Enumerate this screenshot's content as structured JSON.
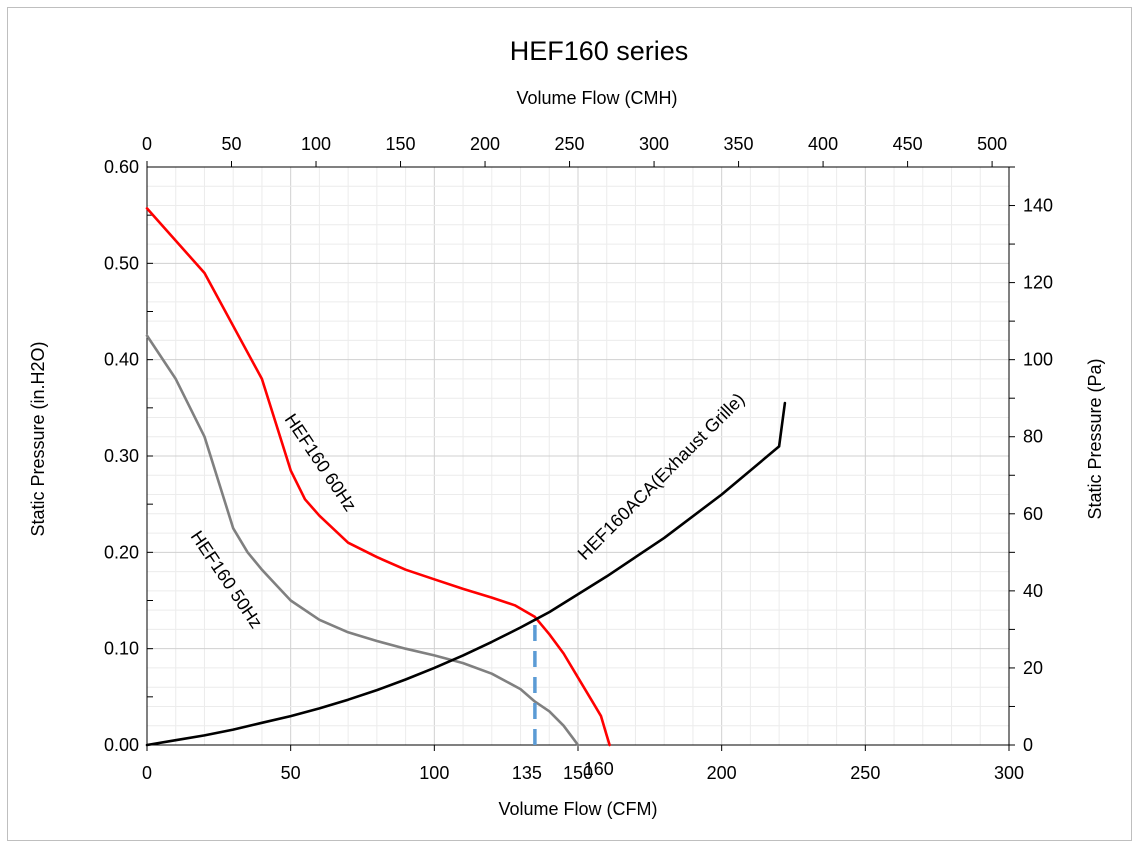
{
  "chart_data": {
    "type": "line",
    "title": "HEF160 series",
    "xlabel": "Volume Flow (CFM)",
    "x2label": "Volume Flow (CMH)",
    "ylabel": "Static Pressure (in.H2O)",
    "y2label": "Static Pressure (Pa)",
    "xlim": [
      0,
      300
    ],
    "x2lim": [
      0,
      510
    ],
    "ylim": [
      0,
      0.6
    ],
    "y2lim": [
      0,
      150
    ],
    "grid": true,
    "x_ticks": [
      "0",
      "50",
      "100",
      "135",
      "150",
      "160",
      "200",
      "250",
      "300"
    ],
    "x_tick_values": [
      0,
      50,
      100,
      135,
      150,
      160,
      200,
      250,
      300
    ],
    "x2_ticks": [
      "0",
      "50",
      "100",
      "150",
      "200",
      "250",
      "300",
      "350",
      "400",
      "450",
      "500"
    ],
    "y_ticks": [
      "0.00",
      "0.10",
      "0.20",
      "0.30",
      "0.40",
      "0.50",
      "0.60"
    ],
    "y2_ticks": [
      "0",
      "20",
      "40",
      "60",
      "80",
      "100",
      "120",
      "140"
    ],
    "series": [
      {
        "name": "HEF160 60Hz",
        "color": "#ff0000",
        "points": [
          [
            0,
            0.557
          ],
          [
            20,
            0.49
          ],
          [
            40,
            0.38
          ],
          [
            50,
            0.285
          ],
          [
            55,
            0.255
          ],
          [
            60,
            0.238
          ],
          [
            70,
            0.21
          ],
          [
            80,
            0.195
          ],
          [
            90,
            0.182
          ],
          [
            100,
            0.172
          ],
          [
            110,
            0.162
          ],
          [
            120,
            0.153
          ],
          [
            128,
            0.145
          ],
          [
            135,
            0.133
          ],
          [
            140,
            0.115
          ],
          [
            145,
            0.095
          ],
          [
            150,
            0.07
          ],
          [
            155,
            0.045
          ],
          [
            158,
            0.03
          ],
          [
            160,
            0.01
          ],
          [
            161,
            0.0
          ]
        ]
      },
      {
        "name": "HEF160 50Hz",
        "color": "#808080",
        "points": [
          [
            0,
            0.425
          ],
          [
            10,
            0.38
          ],
          [
            20,
            0.32
          ],
          [
            30,
            0.225
          ],
          [
            35,
            0.2
          ],
          [
            40,
            0.182
          ],
          [
            45,
            0.166
          ],
          [
            50,
            0.15
          ],
          [
            60,
            0.13
          ],
          [
            70,
            0.117
          ],
          [
            80,
            0.108
          ],
          [
            90,
            0.1
          ],
          [
            100,
            0.093
          ],
          [
            110,
            0.085
          ],
          [
            120,
            0.074
          ],
          [
            130,
            0.058
          ],
          [
            135,
            0.045
          ],
          [
            140,
            0.035
          ],
          [
            145,
            0.02
          ],
          [
            148,
            0.008
          ],
          [
            150,
            0.0
          ]
        ]
      },
      {
        "name": "HEF160ACA(Exhaust Grille)",
        "color": "#000000",
        "points": [
          [
            0,
            0.0
          ],
          [
            10,
            0.005
          ],
          [
            20,
            0.01
          ],
          [
            30,
            0.016
          ],
          [
            40,
            0.023
          ],
          [
            50,
            0.03
          ],
          [
            60,
            0.038
          ],
          [
            70,
            0.047
          ],
          [
            80,
            0.057
          ],
          [
            90,
            0.068
          ],
          [
            100,
            0.08
          ],
          [
            110,
            0.093
          ],
          [
            120,
            0.107
          ],
          [
            130,
            0.122
          ],
          [
            135,
            0.13
          ],
          [
            140,
            0.138
          ],
          [
            160,
            0.175
          ],
          [
            180,
            0.215
          ],
          [
            200,
            0.26
          ],
          [
            220,
            0.31
          ],
          [
            222,
            0.355
          ]
        ]
      }
    ],
    "annotations": [
      {
        "type": "vline",
        "x": 135,
        "y_from": 0,
        "y_to": 0.133,
        "color": "#5b9bd5",
        "style": "dashed"
      }
    ]
  }
}
